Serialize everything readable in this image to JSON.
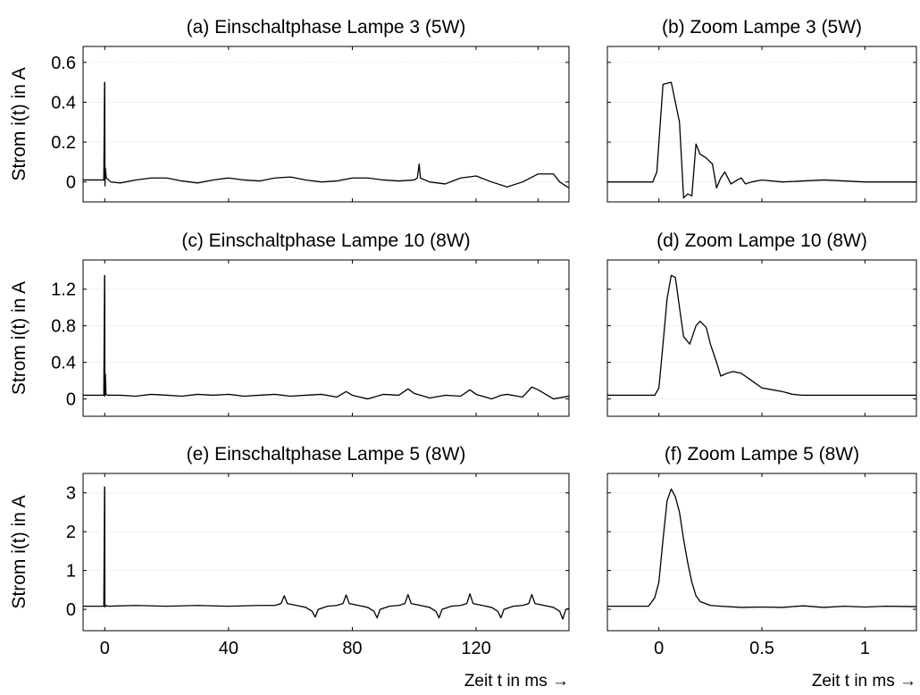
{
  "chart_data": [
    {
      "type": "line",
      "panel": "a",
      "title": "(a) Einschaltphase Lampe 3 (5W)",
      "ylabel": "Strom i(t) in A",
      "xlabel": "",
      "xlim": [
        -7,
        150
      ],
      "ylim": [
        -0.1,
        0.68
      ],
      "xticks": [
        0,
        40,
        80,
        120,
        140
      ],
      "xticklabels": [
        "",
        "",
        "",
        "",
        ""
      ],
      "yticks": [
        0,
        0.2,
        0.4,
        0.6
      ],
      "yticklabels": [
        "0",
        "0.2",
        "0.4",
        "0.6"
      ],
      "grid_y": true,
      "series": [
        {
          "x": [
            -7,
            -0.3,
            -0.05,
            0,
            0.08,
            0.2,
            0.5,
            2,
            5,
            10,
            15,
            20,
            25,
            30,
            35,
            40,
            45,
            50,
            55,
            60,
            65,
            70,
            75,
            80,
            85,
            90,
            95,
            100,
            101,
            101.6,
            102,
            105,
            110,
            115,
            120,
            125,
            130,
            135,
            140,
            145,
            147,
            150
          ],
          "y": [
            0.01,
            0.01,
            0.5,
            0.5,
            -0.02,
            0.07,
            0.02,
            0.0,
            -0.005,
            0.01,
            0.02,
            0.02,
            0.005,
            -0.005,
            0.01,
            0.02,
            0.01,
            0.005,
            0.02,
            0.025,
            0.01,
            0.0,
            0.005,
            0.02,
            0.02,
            0.01,
            0.005,
            0.01,
            0.02,
            0.09,
            0.02,
            0.0,
            -0.01,
            0.02,
            0.03,
            0.0,
            -0.025,
            0.0,
            0.04,
            0.04,
            0.0,
            -0.03
          ]
        }
      ]
    },
    {
      "type": "line",
      "panel": "b",
      "title": "(b) Zoom Lampe 3 (5W)",
      "xlabel": "",
      "ylabel": "",
      "xlim": [
        -0.25,
        1.25
      ],
      "ylim": [
        -0.1,
        0.68
      ],
      "xticks": [
        0,
        0.5,
        1
      ],
      "xticklabels": [
        "",
        "",
        ""
      ],
      "yticks": [
        0,
        0.2,
        0.4,
        0.6
      ],
      "yticklabels": [
        "",
        "",
        "",
        ""
      ],
      "grid_y": true,
      "series": [
        {
          "x": [
            -0.25,
            -0.03,
            -0.01,
            0.02,
            0.06,
            0.1,
            0.12,
            0.14,
            0.16,
            0.18,
            0.2,
            0.23,
            0.26,
            0.28,
            0.3,
            0.32,
            0.35,
            0.38,
            0.4,
            0.42,
            0.45,
            0.5,
            0.6,
            0.8,
            1.0,
            1.25
          ],
          "y": [
            0.0,
            0.0,
            0.05,
            0.49,
            0.5,
            0.3,
            -0.08,
            -0.06,
            -0.07,
            0.19,
            0.14,
            0.12,
            0.09,
            -0.03,
            0.02,
            0.05,
            -0.01,
            0.01,
            0.02,
            -0.01,
            0.0,
            0.01,
            0.0,
            0.01,
            0.0,
            0.0
          ]
        }
      ]
    },
    {
      "type": "line",
      "panel": "c",
      "title": "(c) Einschaltphase Lampe 10 (8W)",
      "ylabel": "Strom i(t) in A",
      "xlabel": "",
      "xlim": [
        -7,
        150
      ],
      "ylim": [
        -0.19,
        1.52
      ],
      "xticks": [
        0,
        40,
        80,
        120,
        140
      ],
      "xticklabels": [
        "",
        "",
        "",
        "",
        ""
      ],
      "yticks": [
        0,
        0.4,
        0.8,
        1.2
      ],
      "yticklabels": [
        "0",
        "0.4",
        "0.8",
        "1.2"
      ],
      "grid_y": true,
      "series": [
        {
          "x": [
            -7,
            -0.3,
            -0.05,
            0,
            0.05,
            0.2,
            0.4,
            1,
            5,
            10,
            15,
            20,
            25,
            30,
            35,
            40,
            45,
            50,
            55,
            60,
            65,
            70,
            75,
            78,
            80,
            85,
            90,
            95,
            98,
            100,
            105,
            110,
            115,
            118,
            120,
            125,
            128,
            130,
            135,
            138,
            140,
            145,
            150
          ],
          "y": [
            0.04,
            0.04,
            1.35,
            1.35,
            0.03,
            0.27,
            0.05,
            0.04,
            0.04,
            0.03,
            0.05,
            0.04,
            0.03,
            0.05,
            0.04,
            0.05,
            0.03,
            0.04,
            0.05,
            0.03,
            0.04,
            0.05,
            0.02,
            0.08,
            0.04,
            0.0,
            0.05,
            0.04,
            0.11,
            0.06,
            0.01,
            0.04,
            0.03,
            0.1,
            0.05,
            0.0,
            0.04,
            0.05,
            0.02,
            0.13,
            0.1,
            0.0,
            0.03
          ]
        }
      ]
    },
    {
      "type": "line",
      "panel": "d",
      "title": "(d) Zoom Lampe 10 (8W)",
      "xlabel": "",
      "ylabel": "",
      "xlim": [
        -0.25,
        1.25
      ],
      "ylim": [
        -0.19,
        1.52
      ],
      "xticks": [
        0,
        0.5,
        1
      ],
      "xticklabels": [
        "",
        "",
        ""
      ],
      "yticks": [
        0,
        0.4,
        0.8,
        1.2
      ],
      "yticklabels": [
        "",
        "",
        "",
        ""
      ],
      "grid_y": true,
      "series": [
        {
          "x": [
            -0.25,
            -0.02,
            0.0,
            0.02,
            0.04,
            0.06,
            0.08,
            0.1,
            0.12,
            0.15,
            0.18,
            0.2,
            0.23,
            0.25,
            0.28,
            0.3,
            0.33,
            0.36,
            0.4,
            0.45,
            0.5,
            0.55,
            0.6,
            0.65,
            0.7,
            1.0,
            1.25
          ],
          "y": [
            0.04,
            0.04,
            0.12,
            0.6,
            1.1,
            1.35,
            1.33,
            1.0,
            0.68,
            0.6,
            0.8,
            0.85,
            0.78,
            0.6,
            0.4,
            0.25,
            0.28,
            0.3,
            0.28,
            0.2,
            0.12,
            0.1,
            0.08,
            0.05,
            0.04,
            0.04,
            0.04
          ]
        }
      ]
    },
    {
      "type": "line",
      "panel": "e",
      "title": "(e) Einschaltphase Lampe 5 (8W)",
      "ylabel": "Strom i(t) in A",
      "xlabel": "Zeit t in ms →",
      "xlim": [
        -7,
        150
      ],
      "ylim": [
        -0.55,
        3.5
      ],
      "xticks": [
        0,
        40,
        80,
        120
      ],
      "xticklabels": [
        "0",
        "40",
        "80",
        "120"
      ],
      "yticks": [
        0,
        1,
        2,
        3
      ],
      "yticklabels": [
        "0",
        "1",
        "2",
        "3"
      ],
      "grid_y": true,
      "series": [
        {
          "x": [
            -7,
            -0.3,
            -0.05,
            0,
            0.05,
            0.3,
            1,
            10,
            20,
            30,
            40,
            50,
            55,
            57,
            58,
            59,
            62,
            65,
            67,
            68,
            69,
            72,
            75,
            77,
            78,
            79,
            82,
            85,
            87,
            88,
            89,
            92,
            95,
            97,
            98,
            99,
            102,
            105,
            107,
            108,
            109,
            112,
            115,
            117,
            118,
            119,
            122,
            125,
            127,
            128,
            129,
            132,
            135,
            137,
            138,
            139,
            142,
            145,
            147,
            148,
            149,
            150
          ],
          "y": [
            0.08,
            0.08,
            3.15,
            3.15,
            0.06,
            0.1,
            0.08,
            0.1,
            0.08,
            0.1,
            0.08,
            0.1,
            0.1,
            0.15,
            0.35,
            0.15,
            0.1,
            0.05,
            -0.05,
            -0.2,
            0.0,
            0.08,
            0.1,
            0.15,
            0.37,
            0.15,
            0.1,
            0.05,
            -0.05,
            -0.22,
            0.0,
            0.08,
            0.1,
            0.15,
            0.38,
            0.15,
            0.1,
            0.05,
            -0.05,
            -0.22,
            0.0,
            0.08,
            0.1,
            0.15,
            0.4,
            0.15,
            0.1,
            0.05,
            -0.05,
            -0.22,
            0.0,
            0.08,
            0.1,
            0.15,
            0.38,
            0.15,
            0.1,
            0.05,
            -0.05,
            -0.25,
            0.0,
            0.02
          ]
        }
      ]
    },
    {
      "type": "line",
      "panel": "f",
      "title": "(f) Zoom Lampe 5 (8W)",
      "xlabel": "Zeit t in ms →",
      "ylabel": "",
      "xlim": [
        -0.25,
        1.25
      ],
      "ylim": [
        -0.55,
        3.5
      ],
      "xticks": [
        0,
        0.5,
        1
      ],
      "xticklabels": [
        "0",
        "0.5",
        "1"
      ],
      "yticks": [
        0,
        1,
        2,
        3
      ],
      "yticklabels": [
        "",
        "",
        "",
        ""
      ],
      "grid_y": true,
      "series": [
        {
          "x": [
            -0.25,
            -0.05,
            -0.02,
            0.0,
            0.02,
            0.04,
            0.06,
            0.08,
            0.1,
            0.12,
            0.14,
            0.16,
            0.18,
            0.2,
            0.25,
            0.3,
            0.4,
            0.5,
            0.6,
            0.7,
            0.8,
            0.9,
            1.0,
            1.1,
            1.25
          ],
          "y": [
            0.08,
            0.08,
            0.3,
            0.7,
            1.8,
            2.8,
            3.1,
            2.9,
            2.5,
            1.8,
            1.2,
            0.7,
            0.35,
            0.2,
            0.1,
            0.08,
            0.05,
            0.06,
            0.05,
            0.09,
            0.05,
            0.08,
            0.06,
            0.08,
            0.07
          ]
        }
      ]
    }
  ]
}
